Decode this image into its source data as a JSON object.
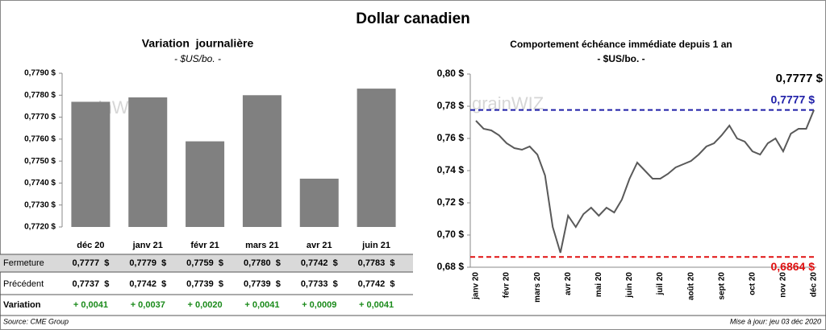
{
  "title": "Dollar canadien",
  "watermark": "grainWIZ",
  "chart_data": [
    {
      "type": "bar",
      "title": "Variation  journalière",
      "subtitle": "- $US/bo. -",
      "categories": [
        "déc 20",
        "janv 21",
        "févr 21",
        "mars 21",
        "avr 21",
        "juin 21"
      ],
      "values": [
        0.7777,
        0.7779,
        0.7759,
        0.778,
        0.7742,
        0.7783
      ],
      "color": "#808080",
      "ylim": [
        0.772,
        0.779
      ],
      "yticks": [
        {
          "value": 0.772,
          "label": "0,7720 $"
        },
        {
          "value": 0.773,
          "label": "0,7730 $"
        },
        {
          "value": 0.774,
          "label": "0,7740 $"
        },
        {
          "value": 0.775,
          "label": "0,7750 $"
        },
        {
          "value": 0.776,
          "label": "0,7760 $"
        },
        {
          "value": 0.777,
          "label": "0,7770 $"
        },
        {
          "value": 0.778,
          "label": "0,7780 $"
        },
        {
          "value": 0.779,
          "label": "0,7790 $"
        }
      ]
    },
    {
      "type": "line",
      "title": "Comportement échéance immédiate depuis 1 an",
      "subtitle": "- $US/bo. -",
      "categories": [
        "janv 20",
        null,
        null,
        null,
        "févr 20",
        null,
        null,
        null,
        "mars 20",
        null,
        null,
        null,
        "avr 20",
        null,
        null,
        null,
        "mai 20",
        null,
        null,
        null,
        "juin 20",
        null,
        null,
        null,
        "juil 20",
        null,
        null,
        null,
        "août 20",
        null,
        null,
        null,
        "sept 20",
        null,
        null,
        null,
        "oct 20",
        null,
        null,
        null,
        "nov 20",
        null,
        null,
        null,
        "déc 20"
      ],
      "values": [
        0.771,
        0.766,
        0.765,
        0.762,
        0.757,
        0.754,
        0.753,
        0.755,
        0.75,
        0.737,
        0.705,
        0.689,
        0.712,
        0.705,
        0.713,
        0.717,
        0.712,
        0.717,
        0.714,
        0.722,
        0.735,
        0.745,
        0.74,
        0.735,
        0.735,
        0.738,
        0.742,
        0.744,
        0.746,
        0.75,
        0.755,
        0.757,
        0.762,
        0.768,
        0.76,
        0.758,
        0.752,
        0.75,
        0.757,
        0.76,
        0.752,
        0.763,
        0.766,
        0.766,
        0.7777
      ],
      "color": "#595959",
      "ylim": [
        0.68,
        0.8
      ],
      "yticks": [
        {
          "value": 0.68,
          "label": "0,68 $"
        },
        {
          "value": 0.7,
          "label": "0,70 $"
        },
        {
          "value": 0.72,
          "label": "0,72 $"
        },
        {
          "value": 0.74,
          "label": "0,74 $"
        },
        {
          "value": 0.76,
          "label": "0,76 $"
        },
        {
          "value": 0.78,
          "label": "0,78 $"
        },
        {
          "value": 0.8,
          "label": "0,80 $"
        }
      ],
      "reference_lines": [
        {
          "value": 0.7777,
          "label": "0,7777 $",
          "color": "#1f1fa8"
        },
        {
          "value": 0.6864,
          "label": "0,6864 $",
          "color": "#e01010"
        }
      ],
      "annotation": "0,7777 $"
    }
  ],
  "table": {
    "rows": [
      {
        "label": "Fermeture",
        "cells": [
          "0,7777  $",
          "0,7779  $",
          "0,7759  $",
          "0,7780  $",
          "0,7742  $",
          "0,7783  $"
        ]
      },
      {
        "label": "Précédent",
        "cells": [
          "0,7737  $",
          "0,7742  $",
          "0,7739  $",
          "0,7739  $",
          "0,7733  $",
          "0,7742  $"
        ]
      },
      {
        "label": "Variation",
        "cells": [
          "+ 0,0041",
          "+ 0,0037",
          "+ 0,0020",
          "+ 0,0041",
          "+ 0,0009",
          "+ 0,0041"
        ]
      }
    ]
  },
  "footer": {
    "source": "Source: CME Group",
    "updated": "Mise à jour: jeu 03 déc 2020"
  }
}
